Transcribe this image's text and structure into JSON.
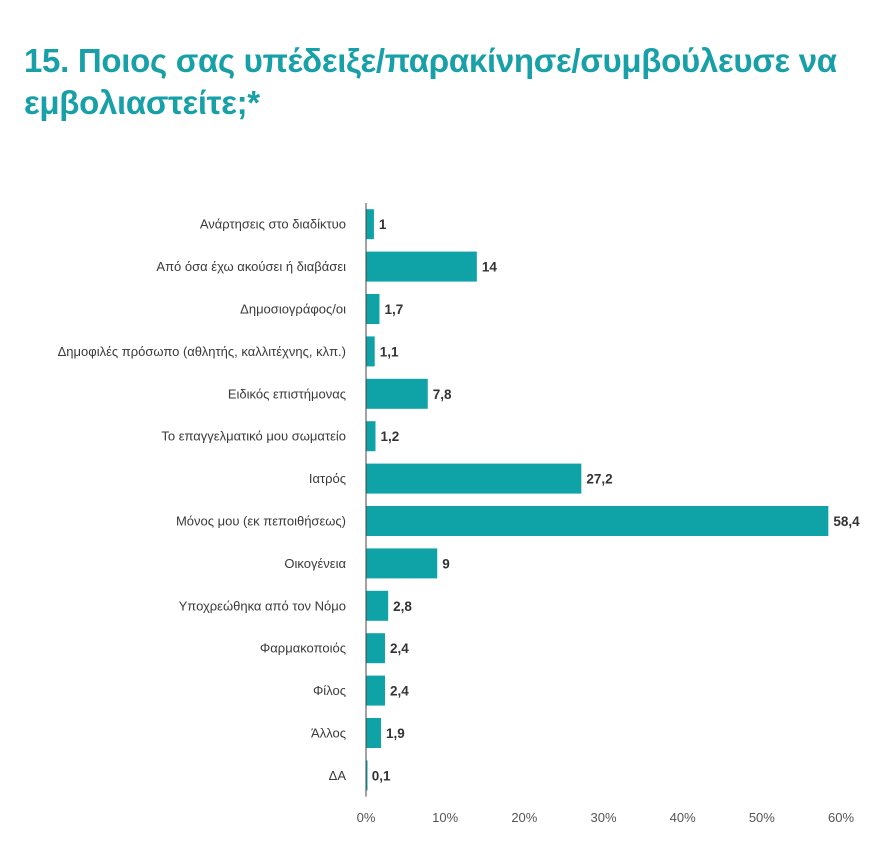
{
  "chart_data": {
    "type": "bar",
    "orientation": "horizontal",
    "title": "15. Ποιος σας υπέδειξε/παρακίνησε/συμβούλευσε να εμβολιαστείτε;*",
    "categories": [
      "Ανάρτησεις στο διαδίκτυο",
      "Από όσα έχω ακούσει ή διαβάσει",
      "Δημοσιογράφος/οι",
      "Δημοφιλές πρόσωπο (αθλητής, καλλιτέχνης, κλπ.)",
      "Ειδικός επιστήμονας",
      "Το επαγγελματικό μου σωματείο",
      "Ιατρός",
      "Μόνος μου (εκ πεποιθήσεως)",
      "Οικογένεια",
      "Υποχρεώθηκα από τον Νόμο",
      "Φαρμακοποιός",
      "Φίλος",
      "Άλλος",
      "ΔΑ"
    ],
    "values": [
      1,
      14,
      1.7,
      1.1,
      7.8,
      1.2,
      27.2,
      58.4,
      9,
      2.8,
      2.4,
      2.4,
      1.9,
      0.1
    ],
    "value_labels": [
      "1",
      "14",
      "1,7",
      "1,1",
      "7,8",
      "1,2",
      "27,2",
      "58,4",
      "9",
      "2,8",
      "2,4",
      "2,4",
      "1,9",
      "0,1"
    ],
    "xlim": [
      0,
      60
    ],
    "x_ticks": [
      0,
      10,
      20,
      30,
      40,
      50,
      60
    ],
    "x_tick_labels": [
      "0%",
      "10%",
      "20%",
      "30%",
      "40%",
      "50%",
      "60%"
    ],
    "xlabel": "",
    "ylabel": "",
    "grid": false,
    "bar_color": "#0fa3a8",
    "title_color": "#17a0a8"
  }
}
